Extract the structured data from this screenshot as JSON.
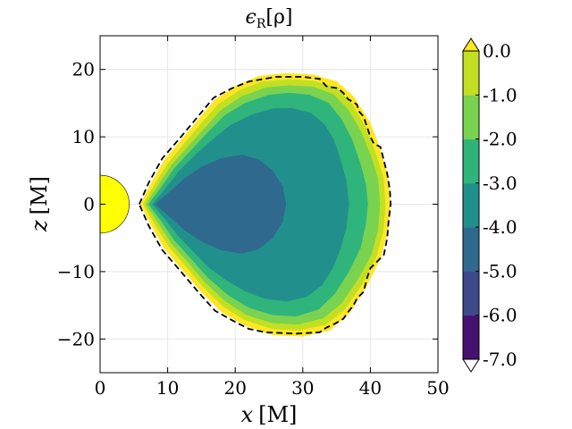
{
  "chart_data": {
    "type": "filled-contour",
    "title": "ϵR[ρ]",
    "title_main": "ϵ",
    "title_sub": "R",
    "title_arg": "[ρ]",
    "xlabel": "x [M]",
    "xlabel_var": "x",
    "xlabel_unit": "[M]",
    "ylabel": "z [M]",
    "ylabel_var": "z",
    "ylabel_unit": "[M]",
    "xlim": [
      0,
      50
    ],
    "ylim": [
      -25,
      25
    ],
    "xticks": [
      0,
      10,
      20,
      30,
      40,
      50
    ],
    "yticks": [
      -20,
      -10,
      0,
      10,
      20
    ],
    "xtick_labels": [
      "0",
      "10",
      "20",
      "30",
      "40",
      "50"
    ],
    "ytick_labels": [
      "−20",
      "−10",
      "0",
      "10",
      "20"
    ],
    "grid": true,
    "colorbar": {
      "levels": [
        -7.0,
        -6.0,
        -5.0,
        -4.0,
        -3.0,
        -2.0,
        -1.0,
        0.0
      ],
      "labels": [
        "-7.0",
        "-6.0",
        "-5.0",
        "-4.0",
        "-3.0",
        "-2.0",
        "-1.0",
        "0.0"
      ],
      "colors": [
        "#46106f",
        "#3e4a89",
        "#30698e",
        "#21908c",
        "#2fb47c",
        "#7ad251",
        "#c2df23",
        "#fde725"
      ],
      "extend": "both",
      "location": "right"
    },
    "black_hole": {
      "center": [
        0,
        0
      ],
      "radius": 4.3,
      "color": "#ffff00"
    },
    "contour_regions": [
      {
        "level": "0.0",
        "color": "#fde725",
        "polygon": [
          [
            6.0,
            0
          ],
          [
            7.5,
            3
          ],
          [
            9.5,
            6.5
          ],
          [
            12,
            9.5
          ],
          [
            14.5,
            12.5
          ],
          [
            17,
            15.5
          ],
          [
            20,
            17.5
          ],
          [
            23.5,
            19
          ],
          [
            27.5,
            19.4
          ],
          [
            31.5,
            19.2
          ],
          [
            35,
            18.2
          ],
          [
            37.5,
            16
          ],
          [
            40,
            12
          ],
          [
            41.5,
            8
          ],
          [
            42.6,
            4
          ],
          [
            42.9,
            0
          ],
          [
            42.6,
            -4
          ],
          [
            41.5,
            -8
          ],
          [
            39.5,
            -12
          ],
          [
            37,
            -16
          ],
          [
            34,
            -18.7
          ],
          [
            30,
            -19.6
          ],
          [
            25.5,
            -19.4
          ],
          [
            21.5,
            -18
          ],
          [
            18,
            -16
          ],
          [
            15,
            -13
          ],
          [
            12,
            -9.5
          ],
          [
            9.5,
            -6.5
          ],
          [
            7.5,
            -3
          ]
        ]
      },
      {
        "level": "-1.0",
        "color": "#c2df23",
        "polygon": [
          [
            6.4,
            0
          ],
          [
            8,
            2.8
          ],
          [
            10,
            6
          ],
          [
            12.5,
            9
          ],
          [
            15,
            12
          ],
          [
            17.5,
            14.8
          ],
          [
            20.5,
            16.8
          ],
          [
            24,
            18.2
          ],
          [
            28,
            18.5
          ],
          [
            31.5,
            18.3
          ],
          [
            35,
            17.2
          ],
          [
            37.2,
            15
          ],
          [
            39.2,
            11.5
          ],
          [
            40.8,
            7.5
          ],
          [
            41.9,
            4
          ],
          [
            42.2,
            0
          ],
          [
            41.9,
            -4
          ],
          [
            40.8,
            -8
          ],
          [
            38.8,
            -11.8
          ],
          [
            36.3,
            -15.5
          ],
          [
            33.5,
            -17.8
          ],
          [
            29.5,
            -18.7
          ],
          [
            25.5,
            -18.5
          ],
          [
            21.5,
            -17.2
          ],
          [
            18.3,
            -15.2
          ],
          [
            15.3,
            -12.3
          ],
          [
            12.5,
            -9
          ],
          [
            10,
            -6
          ],
          [
            8,
            -2.8
          ]
        ]
      },
      {
        "level": "-2.0",
        "color": "#7ad251",
        "polygon": [
          [
            6.8,
            0
          ],
          [
            8.5,
            2.6
          ],
          [
            10.5,
            5.7
          ],
          [
            13,
            8.5
          ],
          [
            15.5,
            11.3
          ],
          [
            18,
            14
          ],
          [
            21,
            16
          ],
          [
            24.5,
            17.3
          ],
          [
            28,
            17.6
          ],
          [
            31.5,
            17.4
          ],
          [
            34.5,
            16.3
          ],
          [
            36.7,
            14
          ],
          [
            38.6,
            10.8
          ],
          [
            40.1,
            7
          ],
          [
            41.1,
            3.8
          ],
          [
            41.4,
            0
          ],
          [
            41.1,
            -3.8
          ],
          [
            40.1,
            -7.5
          ],
          [
            38.1,
            -11.2
          ],
          [
            35.7,
            -14.7
          ],
          [
            33,
            -16.9
          ],
          [
            29.3,
            -17.8
          ],
          [
            25.5,
            -17.6
          ],
          [
            21.7,
            -16.4
          ],
          [
            18.6,
            -14.4
          ],
          [
            15.6,
            -11.6
          ],
          [
            13,
            -8.6
          ],
          [
            10.5,
            -5.7
          ],
          [
            8.5,
            -2.6
          ]
        ]
      },
      {
        "level": "-3.0",
        "color": "#2fb47c",
        "polygon": [
          [
            7.2,
            0
          ],
          [
            9,
            2.4
          ],
          [
            11,
            5.3
          ],
          [
            13.5,
            8
          ],
          [
            16,
            10.7
          ],
          [
            18.5,
            13.2
          ],
          [
            21.5,
            15
          ],
          [
            25,
            16.2
          ],
          [
            28,
            16.5
          ],
          [
            31,
            16.2
          ],
          [
            33.8,
            15
          ],
          [
            35.7,
            12.6
          ],
          [
            37.3,
            9.5
          ],
          [
            38.5,
            6
          ],
          [
            39.3,
            3
          ],
          [
            39.6,
            0
          ],
          [
            39.3,
            -3
          ],
          [
            38.5,
            -6.5
          ],
          [
            36.8,
            -10
          ],
          [
            34.7,
            -13.3
          ],
          [
            32.3,
            -15.6
          ],
          [
            29,
            -16.6
          ],
          [
            25.5,
            -16.4
          ],
          [
            22,
            -15.3
          ],
          [
            19,
            -13.5
          ],
          [
            16,
            -10.9
          ],
          [
            13.5,
            -8.1
          ],
          [
            11,
            -5.3
          ],
          [
            9,
            -2.4
          ]
        ]
      },
      {
        "level": "-4.0",
        "color": "#21908c",
        "polygon": [
          [
            7.8,
            0
          ],
          [
            9.6,
            2.2
          ],
          [
            11.7,
            4.9
          ],
          [
            14.2,
            7.4
          ],
          [
            16.8,
            9.7
          ],
          [
            19.3,
            11.7
          ],
          [
            22.3,
            13.2
          ],
          [
            25.7,
            14.2
          ],
          [
            28.5,
            14.2
          ],
          [
            31.2,
            13.5
          ],
          [
            33.2,
            11.8
          ],
          [
            34.6,
            9.5
          ],
          [
            35.6,
            6.5
          ],
          [
            36.4,
            3.5
          ],
          [
            36.8,
            0
          ],
          [
            36.4,
            -3.5
          ],
          [
            35.6,
            -6.5
          ],
          [
            34.4,
            -9.5
          ],
          [
            32.8,
            -12
          ],
          [
            30.6,
            -13.7
          ],
          [
            27.5,
            -14.4
          ],
          [
            24.5,
            -14
          ],
          [
            21.5,
            -12.9
          ],
          [
            18.6,
            -11.2
          ],
          [
            16,
            -9.3
          ],
          [
            13.8,
            -7
          ],
          [
            11.6,
            -4.7
          ],
          [
            9.6,
            -2.2
          ]
        ]
      },
      {
        "level": "-5.0",
        "color": "#30698e",
        "polygon": [
          [
            8.2,
            0
          ],
          [
            10.3,
            1.8
          ],
          [
            12.5,
            3.8
          ],
          [
            15,
            5.5
          ],
          [
            18,
            6.8
          ],
          [
            21,
            7.3
          ],
          [
            23.5,
            6.6
          ],
          [
            25.5,
            5
          ],
          [
            27,
            2.6
          ],
          [
            27.5,
            0
          ],
          [
            27,
            -2.6
          ],
          [
            25.5,
            -5
          ],
          [
            23.5,
            -6.6
          ],
          [
            21,
            -7.3
          ],
          [
            18,
            -6.8
          ],
          [
            15,
            -5.5
          ],
          [
            12.5,
            -3.8
          ],
          [
            10.3,
            -1.8
          ]
        ]
      }
    ],
    "dashed_contour": [
      [
        5.8,
        0
      ],
      [
        7.2,
        3.2
      ],
      [
        9.2,
        6.8
      ],
      [
        11.8,
        9.8
      ],
      [
        14.3,
        12.8
      ],
      [
        16.8,
        15.8
      ],
      [
        19.5,
        17.2
      ],
      [
        22,
        18.2
      ],
      [
        26,
        18.9
      ],
      [
        30,
        18.9
      ],
      [
        32.5,
        18.6
      ],
      [
        33.5,
        17.5
      ],
      [
        35.2,
        17.2
      ],
      [
        36,
        16.5
      ],
      [
        36.7,
        15.6
      ],
      [
        38,
        14.8
      ],
      [
        38.3,
        13.8
      ],
      [
        39,
        13
      ],
      [
        39.5,
        11.5
      ],
      [
        40,
        10
      ],
      [
        40.5,
        9
      ],
      [
        41.5,
        8.5
      ],
      [
        42,
        6.5
      ],
      [
        42.5,
        4.5
      ],
      [
        42.9,
        2
      ],
      [
        43,
        0
      ],
      [
        42.7,
        -2.5
      ],
      [
        42.5,
        -5
      ],
      [
        42,
        -7.5
      ],
      [
        41,
        -8.5
      ],
      [
        40,
        -9.5
      ],
      [
        39.5,
        -11
      ],
      [
        39,
        -13
      ],
      [
        38,
        -14
      ],
      [
        37.5,
        -15
      ],
      [
        36.7,
        -16
      ],
      [
        36,
        -17
      ],
      [
        34.8,
        -17.7
      ],
      [
        33.5,
        -18.3
      ],
      [
        32.5,
        -19
      ],
      [
        29,
        -19.2
      ],
      [
        24.5,
        -19
      ],
      [
        22,
        -18.5
      ],
      [
        19.5,
        -17.2
      ],
      [
        17,
        -15.8
      ],
      [
        14.5,
        -13
      ],
      [
        11.8,
        -9.8
      ],
      [
        9.2,
        -6.8
      ],
      [
        7.2,
        -3.2
      ]
    ]
  }
}
